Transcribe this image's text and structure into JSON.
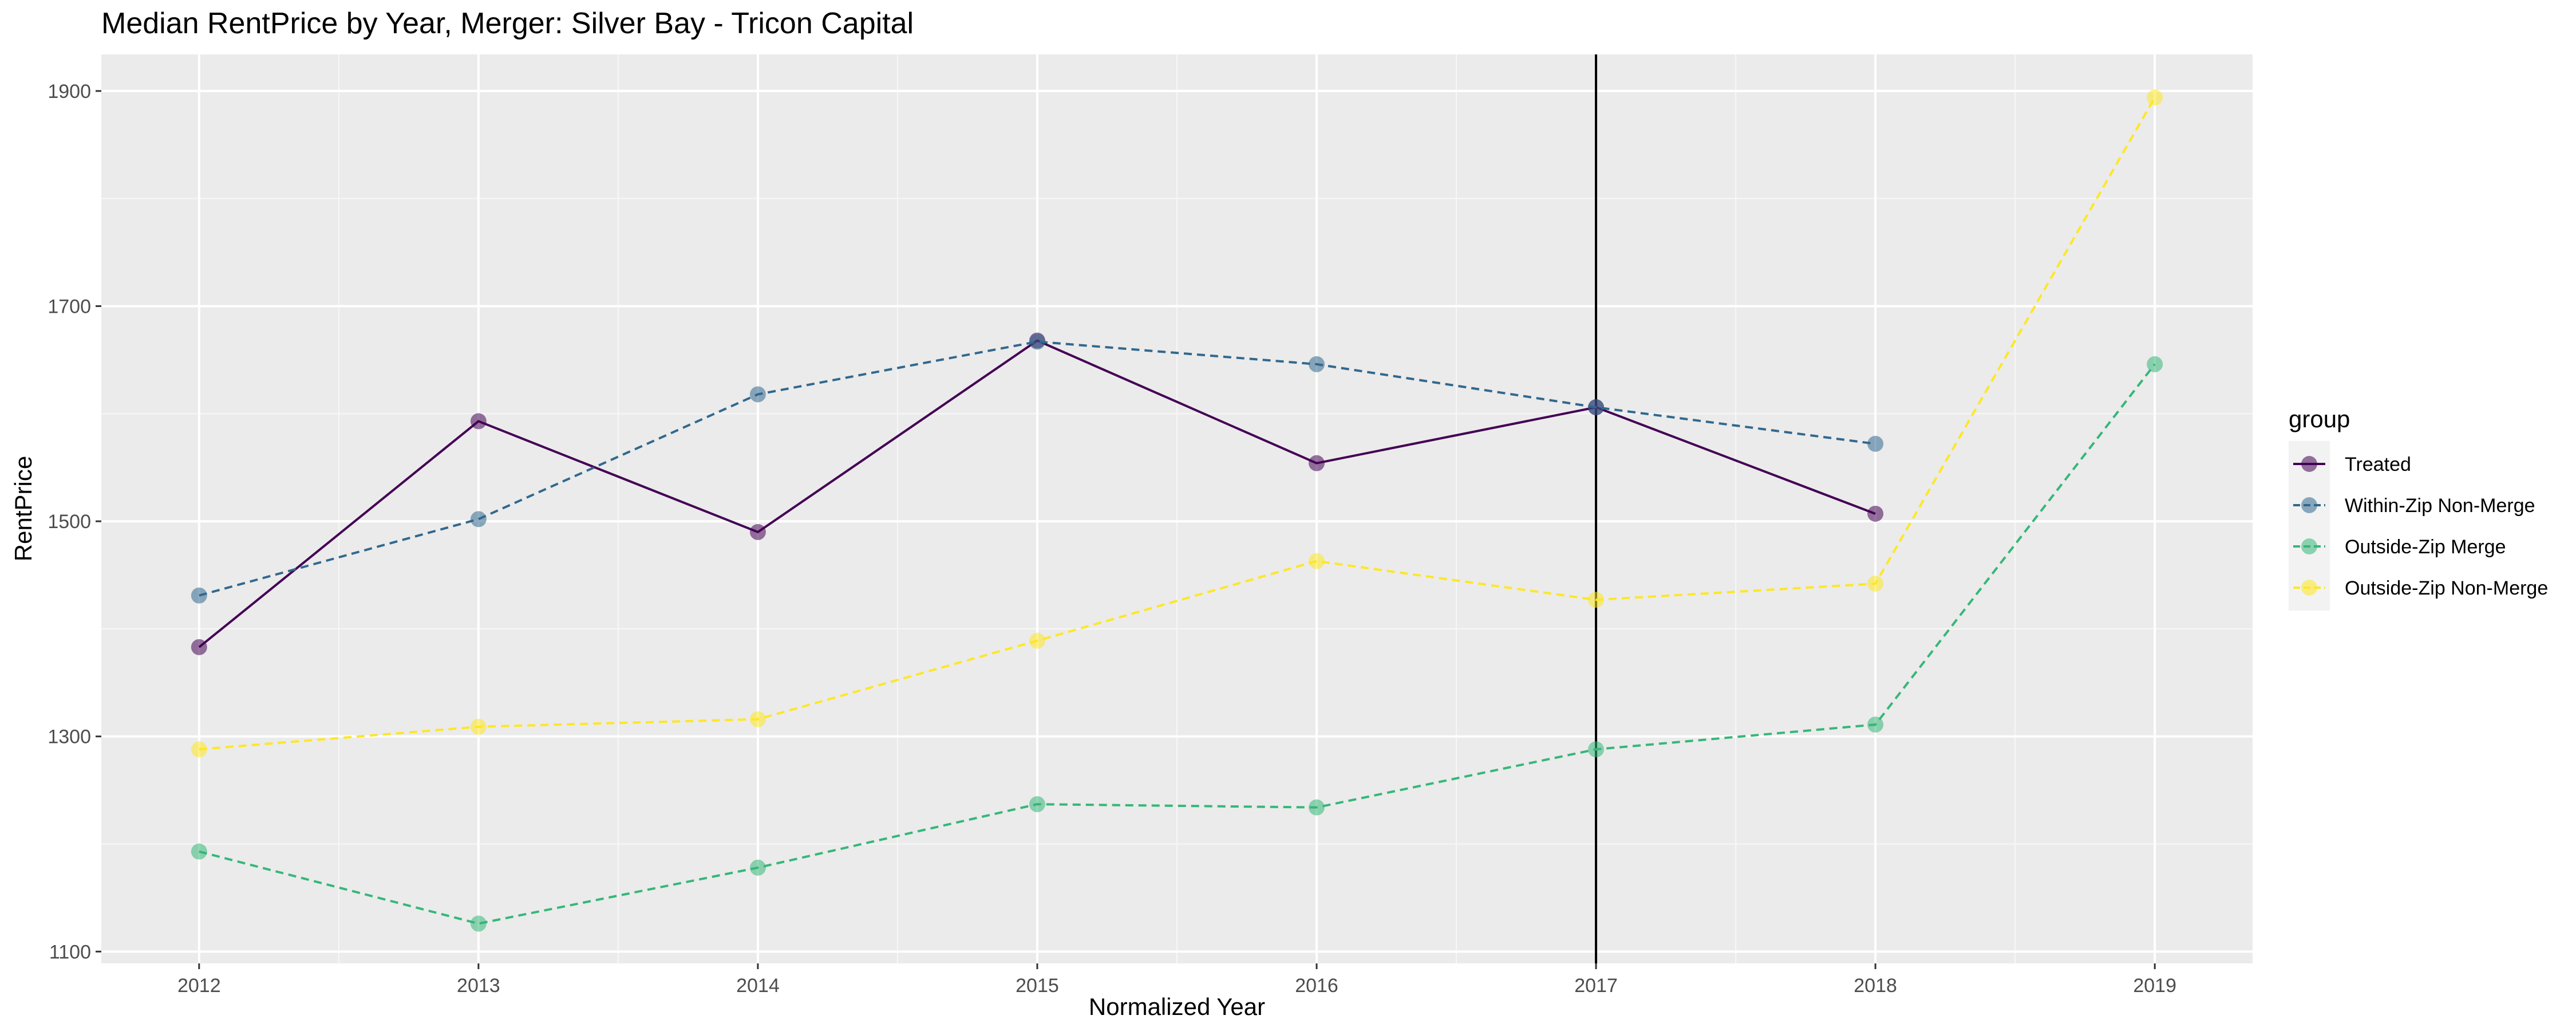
{
  "chart_data": {
    "type": "line",
    "title": "Median RentPrice by Year, Merger: Silver Bay - Tricon Capital",
    "xlabel": "Normalized Year",
    "ylabel": "RentPrice",
    "x": [
      2012,
      2013,
      2014,
      2015,
      2016,
      2017,
      2018,
      2019
    ],
    "xlim": [
      2011.65,
      2019.35
    ],
    "ylim": [
      1089,
      1934
    ],
    "yticks": [
      1100,
      1300,
      1500,
      1700,
      1900
    ],
    "grid": true,
    "vline_x": 2017,
    "legend": {
      "title": "group",
      "placement": "right"
    },
    "series": [
      {
        "name": "Treated",
        "color": "#440154",
        "linestyle": "solid",
        "x": [
          2012,
          2013,
          2014,
          2015,
          2016,
          2017,
          2018
        ],
        "values": [
          1383,
          1593,
          1490,
          1668,
          1554,
          1606,
          1507
        ]
      },
      {
        "name": "Within-Zip Non-Merge",
        "color": "#31688e",
        "linestyle": "dashed",
        "x": [
          2012,
          2013,
          2014,
          2015,
          2016,
          2017,
          2018
        ],
        "values": [
          1431,
          1502,
          1618,
          1667,
          1646,
          1606,
          1572
        ]
      },
      {
        "name": "Outside-Zip Merge",
        "color": "#35b779",
        "linestyle": "dashed",
        "x": [
          2012,
          2013,
          2014,
          2015,
          2016,
          2017,
          2018,
          2019
        ],
        "values": [
          1193,
          1126,
          1178,
          1237,
          1234,
          1288,
          1311,
          1646
        ]
      },
      {
        "name": "Outside-Zip Non-Merge",
        "color": "#fde725",
        "linestyle": "dashed",
        "x": [
          2012,
          2013,
          2014,
          2015,
          2016,
          2017,
          2018,
          2019
        ],
        "values": [
          1288,
          1309,
          1316,
          1389,
          1463,
          1427,
          1442,
          1894
        ]
      }
    ]
  }
}
